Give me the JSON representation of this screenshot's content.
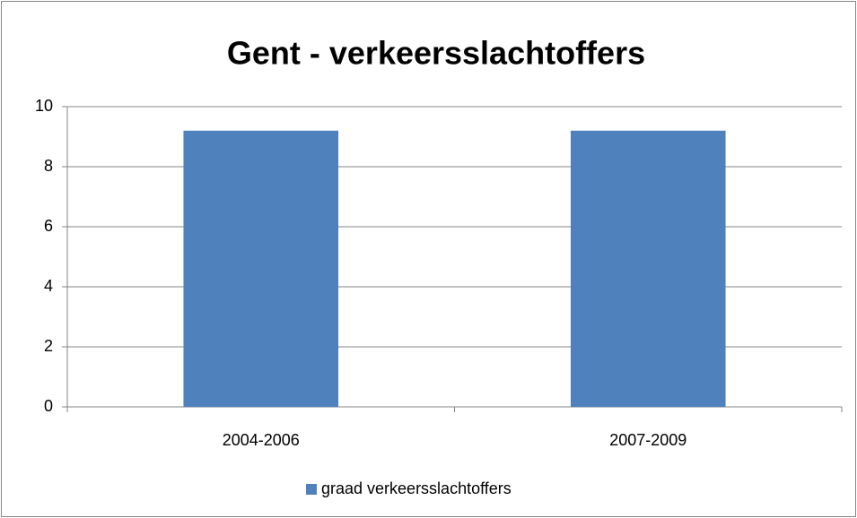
{
  "chart_data": {
    "type": "bar",
    "title": "Gent - verkeersslachtoffers",
    "categories": [
      "2004-2006",
      "2007-2009"
    ],
    "series": [
      {
        "name": "graad verkeersslachtoffers",
        "color": "#4f81bd",
        "values": [
          9.2,
          9.2
        ]
      }
    ],
    "ylim": [
      0,
      10
    ],
    "yticks": [
      0,
      2,
      4,
      6,
      8,
      10
    ],
    "grid": true,
    "legend": "bottom"
  }
}
